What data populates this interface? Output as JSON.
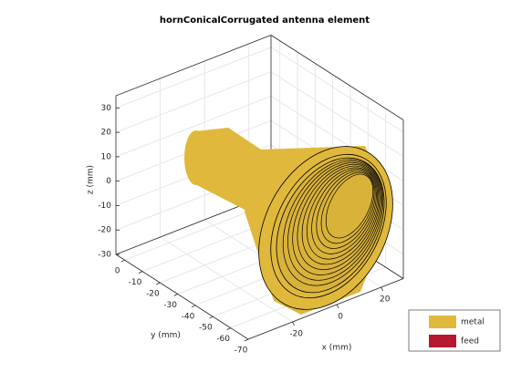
{
  "chart_data": {
    "type": "3d-geometry",
    "title": "hornConicalCorrugated antenna element",
    "xlabel": "x (mm)",
    "ylabel": "y (mm)",
    "zlabel": "z (mm)",
    "xlim": [
      -40,
      30
    ],
    "ylim": [
      -70,
      5
    ],
    "zlim": [
      -30,
      35
    ],
    "xticks": [
      -20,
      0,
      20
    ],
    "yticks": [
      0,
      -10,
      -20,
      -30,
      -40,
      -50,
      -60,
      -70
    ],
    "zticks": [
      -30,
      -20,
      -10,
      0,
      10,
      20,
      30
    ],
    "grid": true,
    "legend": "lower right",
    "series": [
      {
        "name": "metal",
        "color": "#e0b83c"
      },
      {
        "name": "feed",
        "color": "#b5182f"
      }
    ]
  }
}
